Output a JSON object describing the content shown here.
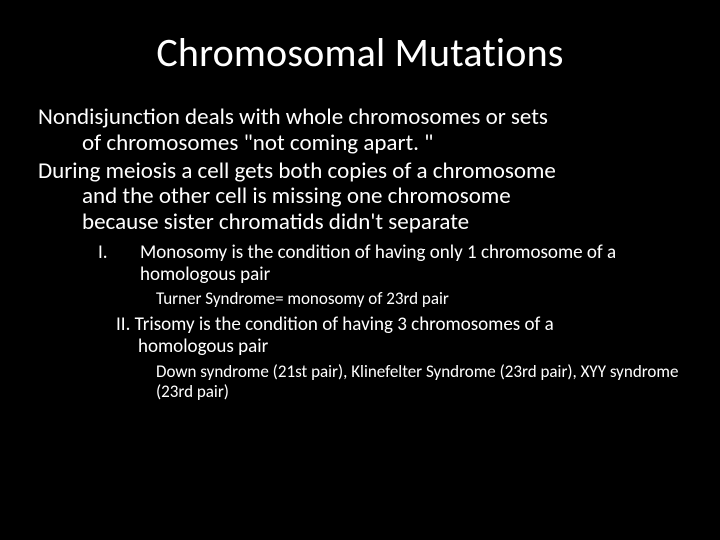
{
  "colors": {
    "background": "#000000",
    "text": "#ffffff"
  },
  "title": {
    "text": "Chromosomal Mutations",
    "fontsize": 40,
    "weight": 400,
    "align": "center"
  },
  "body": {
    "fontsize_main": 23,
    "fontsize_sub": 19,
    "fontsize_subsub": 17,
    "para1_line1": "Nondisjunction deals with whole chromosomes or sets",
    "para1_line2": "of chromosomes \"not coming apart. \"",
    "para2_line1": "During meiosis a cell gets both copies of a chromosome",
    "para2_line2": "and the other cell is missing one chromosome",
    "para2_line3": "because sister chromatids didn't separate",
    "item1": {
      "roman": "I.",
      "text": "Monosomy is the condition of having only 1 chromosome of a homologous pair",
      "detail": "Turner Syndrome= monosomy of 23rd pair"
    },
    "item2": {
      "line1": "II. Trisomy is the condition of having 3 chromosomes of a",
      "line2": "homologous pair",
      "detail": "Down syndrome (21st pair), Klinefelter Syndrome (23rd pair), XYY syndrome (23rd pair)"
    }
  }
}
